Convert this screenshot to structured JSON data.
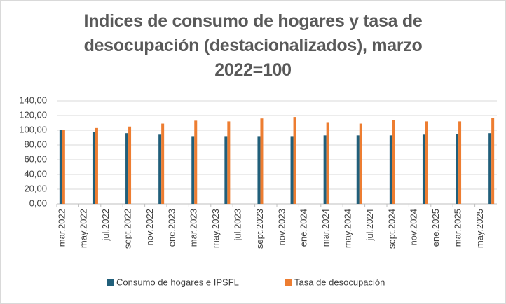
{
  "chart_data": {
    "type": "bar",
    "title": "Indices de consumo de hogares y tasa de desocupación (destacionalizados), marzo 2022=100",
    "categories": [
      "mar.2022",
      null,
      "may.2022",
      null,
      "jul.2022",
      null,
      "sept.2022",
      null,
      "nov.2022",
      null,
      "ene.2023",
      null,
      "mar.2023",
      null,
      "may.2023",
      null,
      "jul.2023",
      null,
      "sept.2023",
      null,
      "nov.2023",
      null,
      "ene.2024",
      null,
      "mar.2024",
      null,
      "may.2024",
      null,
      "jul.2024",
      null,
      "sept.2024",
      null,
      "nov.2024",
      null,
      "ene.2025",
      null,
      "mar.2025",
      null,
      "may.2025",
      null
    ],
    "series": [
      {
        "name": "Consumo de hogares e IPSFL",
        "color": "#215f7a",
        "values": [
          100,
          null,
          null,
          98,
          null,
          null,
          96,
          null,
          null,
          94,
          null,
          null,
          92,
          null,
          null,
          92,
          null,
          null,
          92,
          null,
          null,
          92,
          null,
          null,
          93,
          null,
          null,
          93,
          null,
          null,
          93,
          null,
          null,
          94,
          null,
          null,
          95,
          null,
          null,
          96
        ]
      },
      {
        "name": "Tasa de desocupación",
        "color": "#ed7d31",
        "values": [
          100,
          null,
          null,
          103,
          null,
          null,
          105,
          null,
          null,
          109,
          null,
          null,
          113,
          null,
          null,
          112,
          null,
          null,
          116,
          null,
          null,
          118,
          null,
          null,
          111,
          null,
          null,
          109,
          null,
          null,
          114,
          null,
          null,
          112,
          null,
          null,
          112,
          null,
          null,
          117
        ]
      }
    ],
    "ylim": [
      0,
      140
    ],
    "yticks": [
      {
        "value": 0,
        "label": "0,00"
      },
      {
        "value": 20,
        "label": "20,00"
      },
      {
        "value": 40,
        "label": "40,00"
      },
      {
        "value": 60,
        "label": "60,00"
      },
      {
        "value": 80,
        "label": "80,00"
      },
      {
        "value": 100,
        "label": "100,00"
      },
      {
        "value": 120,
        "label": "120,00"
      },
      {
        "value": 140,
        "label": "140,00"
      }
    ],
    "grid": true,
    "legend": "bottom"
  }
}
